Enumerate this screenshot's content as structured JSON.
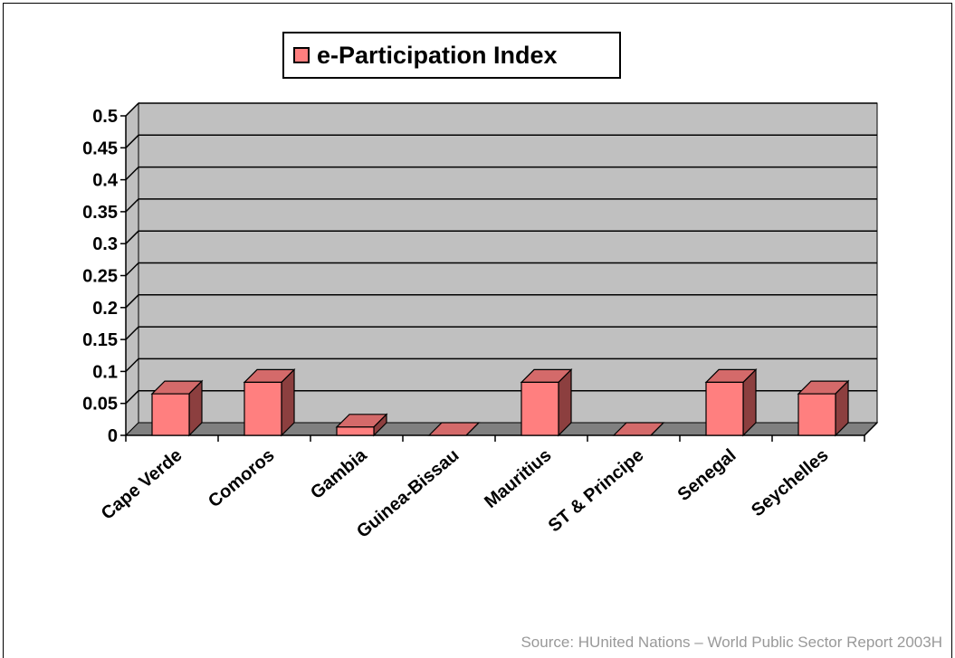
{
  "chart_data": {
    "type": "bar",
    "style": "3d-column",
    "categories": [
      "Cape Verde",
      "Comoros",
      "Gambia",
      "Guinea-Bissau",
      "Mauritius",
      "ST & Principe",
      "Senegal",
      "Seychelles"
    ],
    "series": [
      {
        "name": "e-Participation Index",
        "values": [
          0.065,
          0.083,
          0.013,
          0,
          0.083,
          0,
          0.083,
          0.065
        ]
      }
    ],
    "ylim": [
      0,
      0.5
    ],
    "yticks": [
      "0",
      "0.05",
      "0.1",
      "0.15",
      "0.2",
      "0.25",
      "0.3",
      "0.35",
      "0.4",
      "0.45",
      "0.5"
    ],
    "grid": true,
    "legend_position": "top-center",
    "colors": {
      "bar_front": "#ff7f7f",
      "bar_top": "#d46a6a",
      "bar_side": "#8c3f3f",
      "wall": "#c0c0c0",
      "floor": "#808080"
    }
  },
  "source": "Source: HUnited Nations – World Public Sector Report 2003H"
}
